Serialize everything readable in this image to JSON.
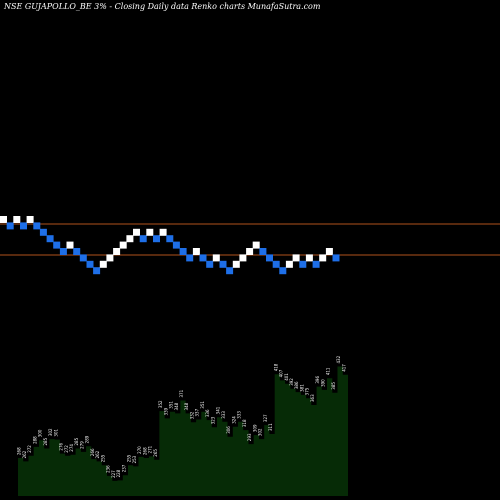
{
  "chart_data": {
    "type": "renko",
    "title": "NSE GUJAPOLLO_BE 3% -  Closing Daily data  Renko  charts MunafaSutra.com",
    "colors": {
      "background": "#000000",
      "up_brick": "#ffffff",
      "down_brick": "#1e6fe8",
      "reference_line": "#b0521c",
      "volume_fill": "#062b06",
      "volume_label": "#ffffff"
    },
    "bricks": [
      {
        "level": 0,
        "dir": "up"
      },
      {
        "level": -1,
        "dir": "down"
      },
      {
        "level": 0,
        "dir": "up"
      },
      {
        "level": -1,
        "dir": "down"
      },
      {
        "level": 0,
        "dir": "up"
      },
      {
        "level": -1,
        "dir": "down"
      },
      {
        "level": -2,
        "dir": "down"
      },
      {
        "level": -3,
        "dir": "down"
      },
      {
        "level": -4,
        "dir": "down"
      },
      {
        "level": -5,
        "dir": "down"
      },
      {
        "level": -4,
        "dir": "up"
      },
      {
        "level": -5,
        "dir": "down"
      },
      {
        "level": -6,
        "dir": "down"
      },
      {
        "level": -7,
        "dir": "down"
      },
      {
        "level": -8,
        "dir": "down"
      },
      {
        "level": -7,
        "dir": "up"
      },
      {
        "level": -6,
        "dir": "up"
      },
      {
        "level": -5,
        "dir": "up"
      },
      {
        "level": -4,
        "dir": "up"
      },
      {
        "level": -3,
        "dir": "up"
      },
      {
        "level": -2,
        "dir": "up"
      },
      {
        "level": -3,
        "dir": "down"
      },
      {
        "level": -2,
        "dir": "up"
      },
      {
        "level": -3,
        "dir": "down"
      },
      {
        "level": -2,
        "dir": "up"
      },
      {
        "level": -3,
        "dir": "down"
      },
      {
        "level": -4,
        "dir": "down"
      },
      {
        "level": -5,
        "dir": "down"
      },
      {
        "level": -6,
        "dir": "down"
      },
      {
        "level": -5,
        "dir": "up"
      },
      {
        "level": -6,
        "dir": "down"
      },
      {
        "level": -7,
        "dir": "down"
      },
      {
        "level": -6,
        "dir": "up"
      },
      {
        "level": -7,
        "dir": "down"
      },
      {
        "level": -8,
        "dir": "down"
      },
      {
        "level": -7,
        "dir": "up"
      },
      {
        "level": -6,
        "dir": "up"
      },
      {
        "level": -5,
        "dir": "up"
      },
      {
        "level": -4,
        "dir": "up"
      },
      {
        "level": -5,
        "dir": "down"
      },
      {
        "level": -6,
        "dir": "down"
      },
      {
        "level": -7,
        "dir": "down"
      },
      {
        "level": -8,
        "dir": "down"
      },
      {
        "level": -7,
        "dir": "up"
      },
      {
        "level": -6,
        "dir": "up"
      },
      {
        "level": -7,
        "dir": "down"
      },
      {
        "level": -6,
        "dir": "up"
      },
      {
        "level": -7,
        "dir": "down"
      },
      {
        "level": -6,
        "dir": "up"
      },
      {
        "level": -5,
        "dir": "up"
      },
      {
        "level": -6,
        "dir": "down"
      }
    ],
    "reference_levels": [
      0,
      -5
    ],
    "volume": {
      "values": [
        268,
        262,
        272,
        288,
        300,
        285,
        302,
        301,
        276,
        272,
        274,
        285,
        279,
        289,
        266,
        262,
        255,
        236,
        227,
        228,
        237,
        255,
        253,
        270,
        268,
        271,
        265,
        352,
        339,
        351,
        348,
        371,
        348,
        332,
        337,
        351,
        336,
        323,
        341,
        333,
        306,
        324,
        333,
        318,
        293,
        309,
        302,
        327,
        311,
        418,
        407,
        401,
        392,
        386,
        381,
        375,
        363,
        396,
        390,
        411,
        385,
        432,
        417
      ]
    }
  }
}
